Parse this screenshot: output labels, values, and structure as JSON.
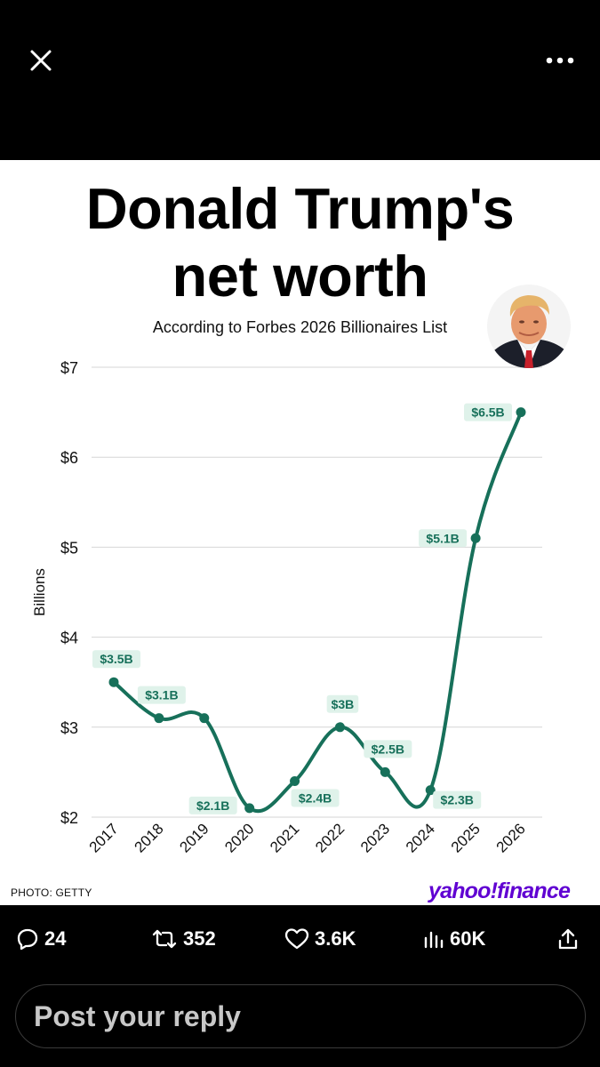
{
  "header": {
    "close_icon": "close-icon",
    "more_icon": "more-horizontal-icon"
  },
  "card": {
    "title_line1": "Donald Trump's",
    "title_line2": "net worth",
    "subtitle": "According to Forbes 2026 Billionaires List",
    "photo_credit": "PHOTO: GETTY",
    "brand": "yahoo!finance",
    "brand_color": "#6001d2"
  },
  "chart_data": {
    "type": "line",
    "title": "Donald Trump's net worth",
    "subtitle": "According to Forbes 2026 Billionaires List",
    "xlabel": "",
    "ylabel": "Billions",
    "x": [
      "2017",
      "2018",
      "2019",
      "2020",
      "2021",
      "2022",
      "2023",
      "2024",
      "2025",
      "2026"
    ],
    "values": [
      3.5,
      3.1,
      3.1,
      2.1,
      2.4,
      3.0,
      2.5,
      2.3,
      5.1,
      6.5
    ],
    "data_labels": [
      "$3.5B",
      "$3.1B",
      "",
      "$2.1B",
      "$2.4B",
      "$3B",
      "$2.5B",
      "$2.3B",
      "$5.1B",
      "$6.5B"
    ],
    "label_pos": [
      "above",
      "above",
      "none",
      "left",
      "right",
      "above",
      "above",
      "right",
      "left",
      "left"
    ],
    "yticks": [
      2,
      3,
      4,
      5,
      6,
      7
    ],
    "ytick_labels": [
      "$2",
      "$3",
      "$4",
      "$5",
      "$6",
      "$7"
    ],
    "ylim": [
      2,
      7
    ],
    "grid": true,
    "line_color": "#17705a",
    "label_bg": "#dff2ea"
  },
  "actions": {
    "replies": "24",
    "reposts": "352",
    "likes": "3.6K",
    "views": "60K"
  },
  "reply": {
    "placeholder": "Post your reply"
  }
}
